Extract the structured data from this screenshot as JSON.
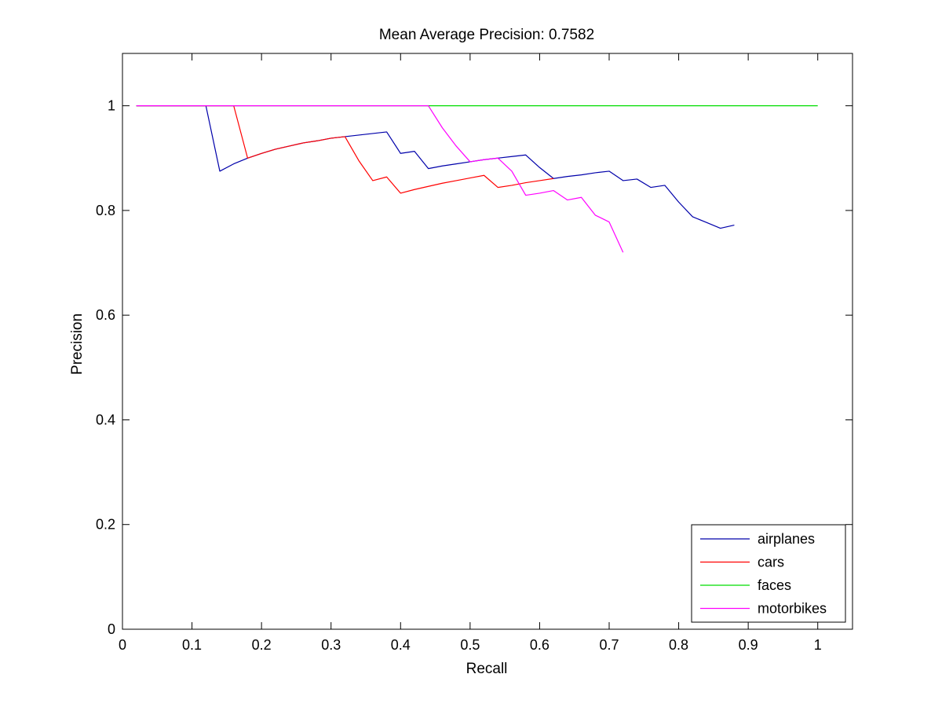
{
  "chart_data": {
    "type": "line",
    "title": "Mean Average Precision: 0.7582",
    "xlabel": "Recall",
    "ylabel": "Precision",
    "xlim": [
      0,
      1.05
    ],
    "ylim": [
      0,
      1.1
    ],
    "xticks": [
      0,
      0.1,
      0.2,
      0.3,
      0.4,
      0.5,
      0.6,
      0.7,
      0.8,
      0.9,
      1
    ],
    "xtick_labels": [
      "0",
      "0.1",
      "0.2",
      "0.3",
      "0.4",
      "0.5",
      "0.6",
      "0.7",
      "0.8",
      "0.9",
      "1"
    ],
    "yticks": [
      0,
      0.2,
      0.4,
      0.6,
      0.8,
      1
    ],
    "ytick_labels": [
      "0",
      "0.2",
      "0.4",
      "0.6",
      "0.8",
      "1"
    ],
    "grid": false,
    "legend_position": "bottom-right",
    "series": [
      {
        "name": "airplanes",
        "color": "#0000aa",
        "points": [
          [
            0.02,
            1.0
          ],
          [
            0.12,
            1.0
          ],
          [
            0.14,
            0.875
          ],
          [
            0.16,
            0.889
          ],
          [
            0.18,
            0.9
          ],
          [
            0.2,
            0.909
          ],
          [
            0.22,
            0.917
          ],
          [
            0.24,
            0.923
          ],
          [
            0.26,
            0.929
          ],
          [
            0.28,
            0.933
          ],
          [
            0.3,
            0.938
          ],
          [
            0.32,
            0.941
          ],
          [
            0.34,
            0.944
          ],
          [
            0.36,
            0.947
          ],
          [
            0.38,
            0.95
          ],
          [
            0.4,
            0.909
          ],
          [
            0.42,
            0.913
          ],
          [
            0.44,
            0.88
          ],
          [
            0.46,
            0.885
          ],
          [
            0.48,
            0.889
          ],
          [
            0.5,
            0.893
          ],
          [
            0.52,
            0.897
          ],
          [
            0.54,
            0.9
          ],
          [
            0.56,
            0.903
          ],
          [
            0.58,
            0.906
          ],
          [
            0.6,
            0.882
          ],
          [
            0.62,
            0.861
          ],
          [
            0.64,
            0.865
          ],
          [
            0.66,
            0.868
          ],
          [
            0.68,
            0.872
          ],
          [
            0.7,
            0.875
          ],
          [
            0.72,
            0.857
          ],
          [
            0.74,
            0.86
          ],
          [
            0.76,
            0.844
          ],
          [
            0.78,
            0.848
          ],
          [
            0.8,
            0.816
          ],
          [
            0.82,
            0.788
          ],
          [
            0.84,
            0.777
          ],
          [
            0.86,
            0.766
          ],
          [
            0.88,
            0.772
          ]
        ]
      },
      {
        "name": "cars",
        "color": "#ff0000",
        "points": [
          [
            0.02,
            1.0
          ],
          [
            0.16,
            1.0
          ],
          [
            0.18,
            0.9
          ],
          [
            0.2,
            0.909
          ],
          [
            0.22,
            0.917
          ],
          [
            0.24,
            0.923
          ],
          [
            0.26,
            0.929
          ],
          [
            0.28,
            0.933
          ],
          [
            0.3,
            0.938
          ],
          [
            0.32,
            0.941
          ],
          [
            0.34,
            0.895
          ],
          [
            0.36,
            0.857
          ],
          [
            0.38,
            0.864
          ],
          [
            0.4,
            0.833
          ],
          [
            0.42,
            0.84
          ],
          [
            0.44,
            0.846
          ],
          [
            0.46,
            0.852
          ],
          [
            0.48,
            0.857
          ],
          [
            0.5,
            0.862
          ],
          [
            0.52,
            0.867
          ],
          [
            0.54,
            0.844
          ],
          [
            0.56,
            0.848
          ],
          [
            0.58,
            0.853
          ],
          [
            0.6,
            0.857
          ],
          [
            0.62,
            0.861
          ]
        ]
      },
      {
        "name": "faces",
        "color": "#00dd00",
        "points": [
          [
            0.02,
            1.0
          ],
          [
            1.0,
            1.0
          ]
        ]
      },
      {
        "name": "motorbikes",
        "color": "#ff00ff",
        "points": [
          [
            0.02,
            1.0
          ],
          [
            0.44,
            1.0
          ],
          [
            0.46,
            0.958
          ],
          [
            0.48,
            0.923
          ],
          [
            0.5,
            0.893
          ],
          [
            0.52,
            0.897
          ],
          [
            0.54,
            0.9
          ],
          [
            0.56,
            0.875
          ],
          [
            0.58,
            0.829
          ],
          [
            0.6,
            0.833
          ],
          [
            0.62,
            0.838
          ],
          [
            0.64,
            0.82
          ],
          [
            0.66,
            0.825
          ],
          [
            0.68,
            0.791
          ],
          [
            0.7,
            0.778
          ],
          [
            0.72,
            0.72
          ]
        ]
      }
    ]
  }
}
